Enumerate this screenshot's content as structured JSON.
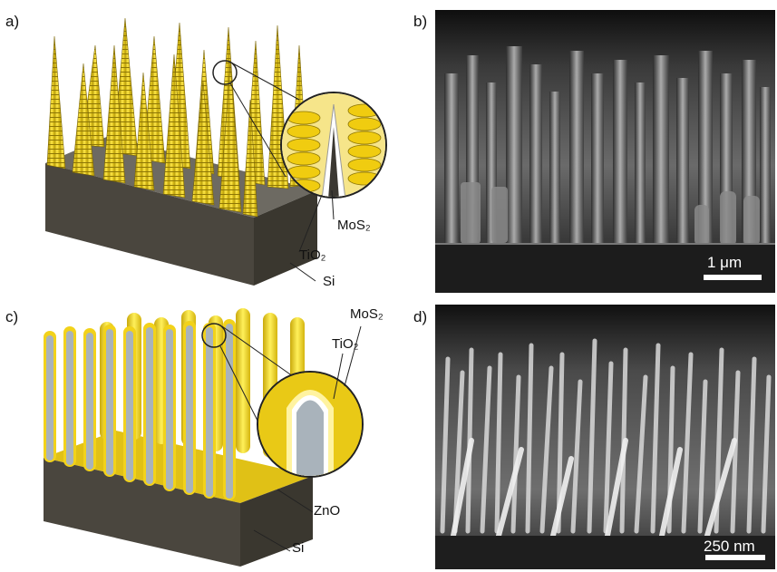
{
  "panels": {
    "a": {
      "label": "a)",
      "layers": [
        "MoS₂",
        "TiO₂",
        "Si"
      ]
    },
    "b": {
      "label": "b)",
      "scale": "1 μm"
    },
    "c": {
      "label": "c)",
      "layers": [
        "MoS₂",
        "TiO₂",
        "ZnO",
        "Si"
      ]
    },
    "d": {
      "label": "d)",
      "scale": "250 nm"
    }
  },
  "colors": {
    "mos2": "#f2d21a",
    "si_block": "#4a463e",
    "zno": "#a9b3bb",
    "sem_bg": "#141414"
  }
}
